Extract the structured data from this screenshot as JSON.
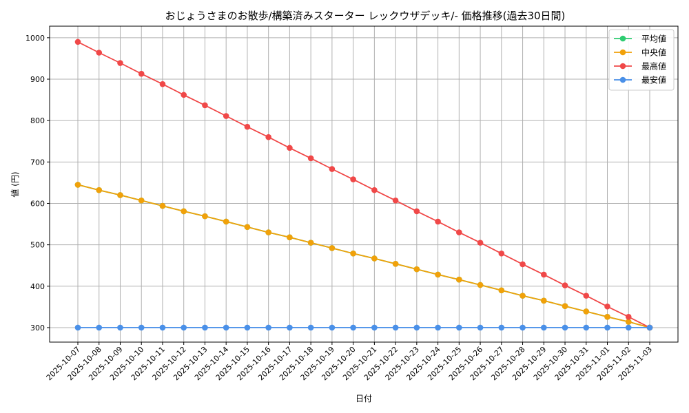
{
  "chart_data": {
    "type": "line",
    "title": "おじょうさまのお散歩/構築済みスターター レックウザデッキ/- 価格推移(過去30日間)",
    "xlabel": "日付",
    "ylabel": "値 (円)",
    "ylim": [
      265,
      1028
    ],
    "yticks": [
      300,
      400,
      500,
      600,
      700,
      800,
      900,
      1000
    ],
    "grid": true,
    "legend_position": "top-right",
    "categories": [
      "2025-10-07",
      "2025-10-08",
      "2025-10-09",
      "2025-10-10",
      "2025-10-11",
      "2025-10-12",
      "2025-10-13",
      "2025-10-14",
      "2025-10-15",
      "2025-10-16",
      "2025-10-17",
      "2025-10-18",
      "2025-10-19",
      "2025-10-20",
      "2025-10-21",
      "2025-10-22",
      "2025-10-23",
      "2025-10-24",
      "2025-10-25",
      "2025-10-26",
      "2025-10-27",
      "2025-10-28",
      "2025-10-29",
      "2025-10-30",
      "2025-10-31",
      "2025-11-01",
      "2025-11-02",
      "2025-11-03"
    ],
    "series": [
      {
        "name": "平均値",
        "color": "#2ecc71",
        "values": [
          645,
          632,
          620,
          607,
          594,
          581,
          569,
          556,
          543,
          530,
          518,
          505,
          492,
          479,
          467,
          454,
          441,
          428,
          416,
          403,
          390,
          377,
          365,
          352,
          339,
          326,
          314,
          300
        ]
      },
      {
        "name": "中央値",
        "color": "#f1a10a",
        "values": [
          645,
          632,
          620,
          607,
          594,
          581,
          569,
          556,
          543,
          530,
          518,
          505,
          492,
          479,
          467,
          454,
          441,
          428,
          416,
          403,
          390,
          377,
          365,
          352,
          339,
          326,
          314,
          300
        ]
      },
      {
        "name": "最高値",
        "color": "#f04848",
        "values": [
          990,
          964,
          939,
          913,
          888,
          862,
          837,
          811,
          785,
          760,
          734,
          709,
          683,
          658,
          632,
          607,
          581,
          556,
          530,
          505,
          479,
          453,
          428,
          402,
          377,
          351,
          326,
          300
        ]
      },
      {
        "name": "最安値",
        "color": "#4a90e8",
        "values": [
          300,
          300,
          300,
          300,
          300,
          300,
          300,
          300,
          300,
          300,
          300,
          300,
          300,
          300,
          300,
          300,
          300,
          300,
          300,
          300,
          300,
          300,
          300,
          300,
          300,
          300,
          300,
          300
        ]
      }
    ]
  }
}
